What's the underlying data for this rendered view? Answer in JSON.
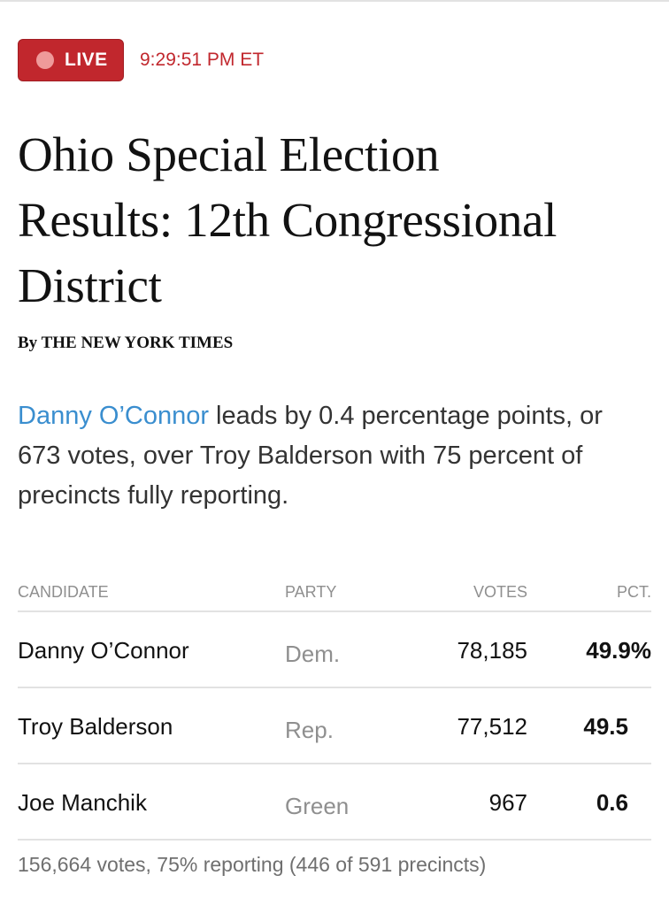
{
  "live": {
    "label": "LIVE",
    "time": "9:29:51 PM ET"
  },
  "headline": "Ohio Special Election Results: 12th Congressional District",
  "byline": "By THE NEW YORK TIMES",
  "summary": {
    "leader": "Danny O’Connor",
    "text": " leads by 0.4 percentage points, or 673 votes, over Troy Balderson with 75 percent of precincts fully reporting."
  },
  "table": {
    "headers": {
      "candidate": "CANDIDATE",
      "party": "PARTY",
      "votes": "VOTES",
      "pct": "PCT."
    },
    "rows": [
      {
        "name": "Danny O’Connor",
        "party": "Dem.",
        "votes": "78,185",
        "pct": "49.9%"
      },
      {
        "name": "Troy Balderson",
        "party": "Rep.",
        "votes": "77,512",
        "pct": "49.5"
      },
      {
        "name": "Joe Manchik",
        "party": "Green",
        "votes": "967",
        "pct": "0.6"
      }
    ]
  },
  "footer": "156,664 votes, 75% reporting (446 of 591 precincts)",
  "colors": {
    "live_red": "#c1272d",
    "leader_blue": "#3a8ecf"
  }
}
